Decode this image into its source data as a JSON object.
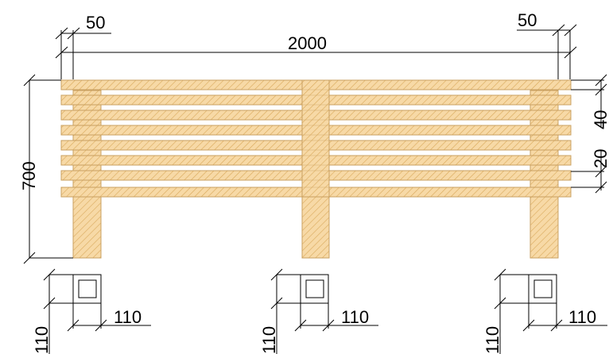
{
  "dimensions": {
    "top_left_overhang": "50",
    "top_right_overhang": "50",
    "total_length": "2000",
    "total_height": "700",
    "slat_height": "40",
    "slat_gap": "20",
    "post_left_width": "110",
    "post_left_depth": "110",
    "post_center_width": "110",
    "post_center_depth": "110",
    "post_right_width": "110",
    "post_right_depth": "110"
  },
  "colors": {
    "wood_fill": "#f7d9a6",
    "wood_hatch": "#d9a95b",
    "wood_outline": "#c9a060",
    "dimension_lines": "#000000"
  }
}
